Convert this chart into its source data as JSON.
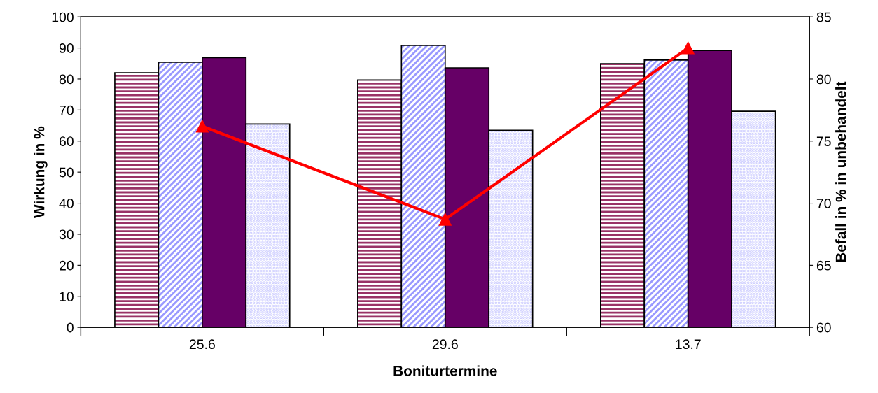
{
  "chart_data": {
    "type": "bar",
    "xlabel": "Boniturtermine",
    "ylabel": "Wirkung in %",
    "y2label": "Befall in % in unbehandelt",
    "categories": [
      "25.6",
      "29.6",
      "13.7"
    ],
    "series": [
      {
        "color": "#993366",
        "values": [
          82,
          79.7,
          84.9
        ]
      },
      {
        "color": "#9999ff",
        "values": [
          85.4,
          90.8,
          86.1
        ]
      },
      {
        "color": "#660066",
        "values": [
          86.9,
          83.6,
          89.2
        ]
      },
      {
        "color": "#ccccff",
        "values": [
          65.5,
          63.5,
          69.6
        ]
      },
      {
        "type": "line",
        "axis": "y2",
        "color": "#ff0000",
        "marker": "triangle",
        "values": [
          76.2,
          68.7,
          82.5
        ]
      }
    ],
    "ylim": [
      0,
      100
    ],
    "yticks": [
      0,
      10,
      20,
      30,
      40,
      50,
      60,
      70,
      80,
      90,
      100
    ],
    "y2lim": [
      60,
      85
    ],
    "y2ticks": [
      60,
      65,
      70,
      75,
      80,
      85
    ],
    "grid": false,
    "legend": false
  }
}
